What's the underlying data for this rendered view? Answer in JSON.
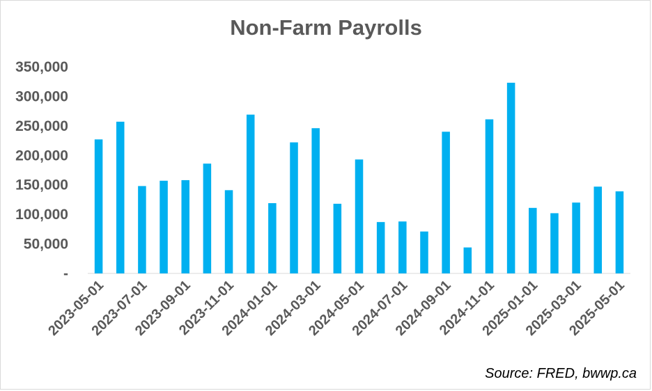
{
  "chart_data": {
    "type": "bar",
    "title": "Non-Farm Payrolls",
    "source": "Source: FRED, bwwp.ca",
    "bar_color": "#00b0f0",
    "ylim": [
      0,
      350000
    ],
    "y_ticks": [
      0,
      50000,
      100000,
      150000,
      200000,
      250000,
      300000,
      350000
    ],
    "y_tick_labels": [
      "-",
      "50,000",
      "100,000",
      "150,000",
      "200,000",
      "250,000",
      "300,000",
      "350,000"
    ],
    "x_tick_labels": [
      "2023-05-01",
      "2023-07-01",
      "2023-09-01",
      "2023-11-01",
      "2024-01-01",
      "2024-03-01",
      "2024-05-01",
      "2024-07-01",
      "2024-09-01",
      "2024-11-01",
      "2025-01-01",
      "2025-03-01",
      "2025-05-01"
    ],
    "categories": [
      "2023-05-01",
      "2023-06-01",
      "2023-07-01",
      "2023-08-01",
      "2023-09-01",
      "2023-10-01",
      "2023-11-01",
      "2023-12-01",
      "2024-01-01",
      "2024-02-01",
      "2024-03-01",
      "2024-04-01",
      "2024-05-01",
      "2024-06-01",
      "2024-07-01",
      "2024-08-01",
      "2024-09-01",
      "2024-10-01",
      "2024-11-01",
      "2024-12-01",
      "2025-01-01",
      "2025-02-01",
      "2025-03-01",
      "2025-04-01",
      "2025-05-01"
    ],
    "values": [
      227000,
      257000,
      148000,
      157000,
      158000,
      186000,
      141000,
      269000,
      119000,
      222000,
      246000,
      118000,
      193000,
      87000,
      88000,
      71000,
      240000,
      44000,
      261000,
      323000,
      111000,
      102000,
      120000,
      147000,
      139000
    ]
  }
}
